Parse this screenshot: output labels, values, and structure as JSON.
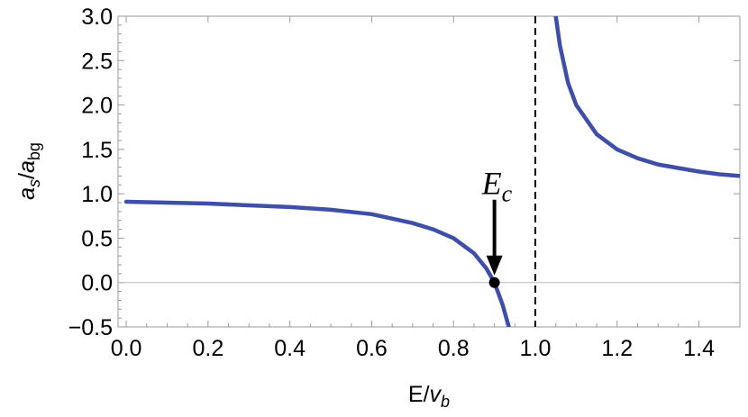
{
  "chart_data": {
    "type": "line",
    "xlabel_main": "E/",
    "xlabel_var": "v",
    "xlabel_sub": "b",
    "ylabel_num_var": "a",
    "ylabel_num_sub": "s",
    "ylabel_slash": "/",
    "ylabel_den_var": "a",
    "ylabel_den_sub": "bg",
    "xlim": [
      -0.02,
      1.5
    ],
    "ylim": [
      -0.5,
      3.0
    ],
    "x_ticks": [
      "0.0",
      "0.2",
      "0.4",
      "0.6",
      "0.8",
      "1.0",
      "1.2",
      "1.4"
    ],
    "y_ticks": [
      "−0.5",
      "0.0",
      "0.5",
      "1.0",
      "1.5",
      "2.0",
      "2.5",
      "3.0"
    ],
    "grid": false,
    "series": [
      {
        "color": "#3f4ea6",
        "x": [
          0.0,
          0.1,
          0.2,
          0.3,
          0.4,
          0.5,
          0.6,
          0.7,
          0.75,
          0.8,
          0.85,
          0.88,
          0.9,
          0.92,
          0.94,
          1.05,
          1.06,
          1.08,
          1.1,
          1.15,
          1.2,
          1.25,
          1.3,
          1.35,
          1.4,
          1.45,
          1.5
        ],
        "y": [
          0.91,
          0.9,
          0.89,
          0.87,
          0.85,
          0.82,
          0.77,
          0.67,
          0.6,
          0.5,
          0.33,
          0.16,
          0.0,
          -0.25,
          -0.58,
          3.0,
          2.67,
          2.25,
          2.0,
          1.67,
          1.5,
          1.4,
          1.33,
          1.29,
          1.25,
          1.22,
          1.2
        ]
      }
    ],
    "vertical_line": {
      "x": 1.0,
      "style": "dashed",
      "color": "#000000"
    },
    "zero_line": {
      "y": 0.0,
      "color": "#b9b9b9"
    },
    "annotation": {
      "label_main": "E",
      "label_sub": "c",
      "point": {
        "x": 0.9,
        "y": 0.0
      },
      "arrow": true
    }
  }
}
